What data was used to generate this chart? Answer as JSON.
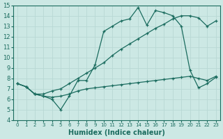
{
  "xlabel": "Humidex (Indice chaleur)",
  "xlim": [
    -0.5,
    23.5
  ],
  "ylim": [
    4,
    15
  ],
  "xticks": [
    0,
    1,
    2,
    3,
    4,
    5,
    6,
    7,
    8,
    9,
    10,
    11,
    12,
    13,
    14,
    15,
    16,
    17,
    18,
    19,
    20,
    21,
    22,
    23
  ],
  "yticks": [
    4,
    5,
    6,
    7,
    8,
    9,
    10,
    11,
    12,
    13,
    14,
    15
  ],
  "bg_color": "#cce8e4",
  "line_color": "#1a6b5e",
  "grid_color": "#b8d8d4",
  "line1_x": [
    0,
    1,
    2,
    3,
    4,
    5,
    6,
    7,
    8,
    9,
    10,
    11,
    12,
    13,
    14,
    15,
    16,
    17,
    18,
    19,
    20,
    21,
    22,
    23
  ],
  "line1_y": [
    7.5,
    7.2,
    6.5,
    6.3,
    6.0,
    5.0,
    6.3,
    7.8,
    7.8,
    9.3,
    12.5,
    13.0,
    13.5,
    13.7,
    14.8,
    13.1,
    14.5,
    14.3,
    14.0,
    13.0,
    8.8,
    7.1,
    7.5,
    8.1
  ],
  "line2_x": [
    0,
    1,
    2,
    3,
    4,
    5,
    6,
    7,
    8,
    9,
    10,
    11,
    12,
    13,
    14,
    15,
    16,
    17,
    18,
    19,
    20,
    21,
    22,
    23
  ],
  "line2_y": [
    7.5,
    7.2,
    6.5,
    6.5,
    6.8,
    7.0,
    7.5,
    8.0,
    8.5,
    9.0,
    9.5,
    10.2,
    10.8,
    11.3,
    11.8,
    12.3,
    12.8,
    13.2,
    13.7,
    14.0,
    14.0,
    13.8,
    13.0,
    13.5
  ],
  "line3_x": [
    0,
    1,
    2,
    3,
    4,
    5,
    6,
    7,
    8,
    9,
    10,
    11,
    12,
    13,
    14,
    15,
    16,
    17,
    18,
    19,
    20,
    21,
    22,
    23
  ],
  "line3_y": [
    7.5,
    7.2,
    6.5,
    6.3,
    6.2,
    6.3,
    6.5,
    6.8,
    7.0,
    7.1,
    7.2,
    7.3,
    7.4,
    7.5,
    7.6,
    7.7,
    7.8,
    7.9,
    8.0,
    8.1,
    8.2,
    8.0,
    7.8,
    8.2
  ]
}
